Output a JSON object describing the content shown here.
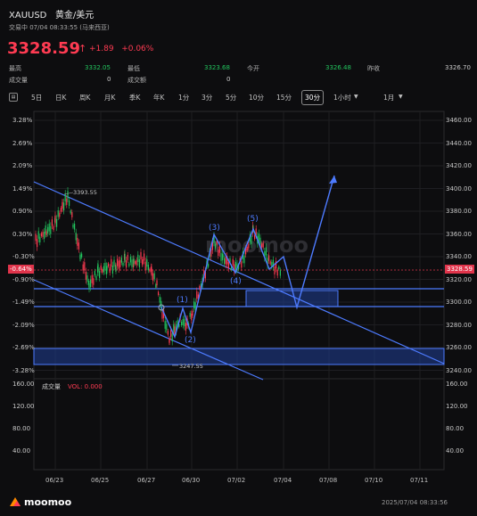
{
  "header": {
    "symbol": "XAUUSD",
    "name": "黄金/美元",
    "status": "交易中 07/04 08:33:55 (马来西亚)",
    "price": "3328.59",
    "change": "+1.89",
    "change_pct": "+0.06%"
  },
  "stats": {
    "high_label": "最高",
    "high_value": "3332.05",
    "low_label": "最低",
    "low_value": "3323.68",
    "open_label": "今开",
    "open_value": "3326.48",
    "prev_label": "昨收",
    "prev_value": "3326.70",
    "vol_label": "成交量",
    "vol_value": "0",
    "amount_label": "成交额",
    "amount_value": "0"
  },
  "toolbar": {
    "items": [
      "5日",
      "日K",
      "周K",
      "月K",
      "季K",
      "年K",
      "1分",
      "3分",
      "5分",
      "10分",
      "15分",
      "30分",
      "1小时",
      "1月"
    ],
    "active": "30分"
  },
  "chart": {
    "left_ticks": [
      "3.28%",
      "2.69%",
      "2.09%",
      "1.49%",
      "0.90%",
      "0.30%",
      "-0.30%",
      "-0.90%",
      "-1.49%",
      "-2.09%",
      "-2.69%",
      "-3.28%"
    ],
    "right_ticks": [
      "3460.00",
      "3440.00",
      "3420.00",
      "3400.00",
      "3380.00",
      "3360.00",
      "3340.00",
      "3320.00",
      "3300.00",
      "3280.00",
      "3260.00",
      "3240.00"
    ],
    "current_pct": "-0.64%",
    "current_price": "3328.59",
    "high_marker": "3393.55",
    "low_marker": "3247.55",
    "wave_labels": [
      "(1)",
      "(2)",
      "(3)",
      "(4)",
      "(5)"
    ],
    "watermark": "moomoo",
    "x_labels": [
      "06/23",
      "06/25",
      "06/27",
      "06/30",
      "07/02",
      "07/04",
      "07/08",
      "07/10",
      "07/11"
    ]
  },
  "volume": {
    "label": "成交量",
    "vol_text": "VOL: 0.000",
    "ticks": [
      "160.00",
      "120.00",
      "80.00",
      "40.00"
    ]
  },
  "footer": {
    "brand": "moomoo",
    "timestamp": "2025/07/04 08:33:56"
  },
  "colors": {
    "up": "#22c55e",
    "down": "#ff3b52",
    "drawing": "#4d7bff",
    "zone": "#1e3a8a"
  }
}
